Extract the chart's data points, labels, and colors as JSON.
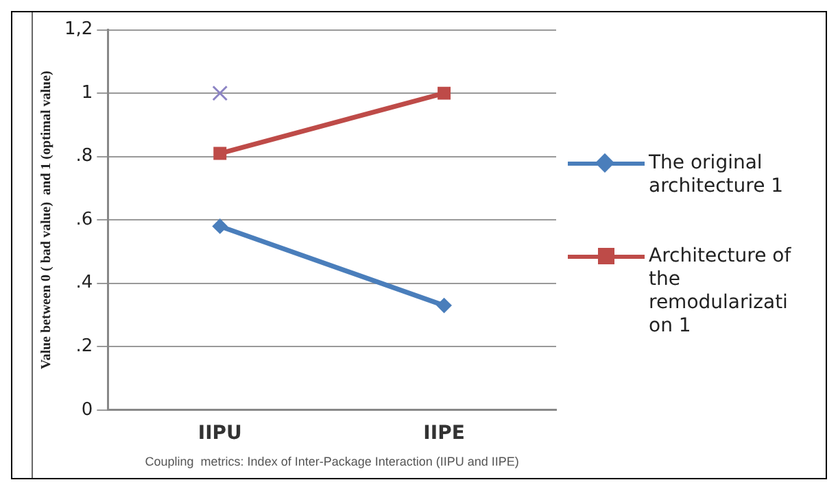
{
  "chart_data": {
    "type": "line",
    "xlabel": "Coupling  metrics: Index of Inter-Package Interaction (IIPU and IIPE)",
    "ylabel": "Value between 0 ( bad value)  and 1 (optimal value)",
    "categories": [
      "IIPU",
      "IIPE"
    ],
    "series": [
      {
        "name": "The original architecture 1",
        "color": "#4a7ebb",
        "values": [
          0.58,
          0.33
        ],
        "marker": "diamond"
      },
      {
        "name": "Architecture of the remodularization 1",
        "color": "#be4b48",
        "values": [
          0.81,
          1.0
        ],
        "marker": "square"
      },
      {
        "color": "#8c84c4",
        "values": [
          1.0,
          null
        ],
        "marker": "cross"
      }
    ],
    "ylim": [
      0,
      1.2
    ],
    "yticks": [
      0,
      {
        "value": 0.2,
        "label": ".2"
      },
      {
        "value": 0.4,
        "label": ".4"
      },
      {
        "value": 0.6,
        "label": ".6"
      },
      {
        "value": 0.8,
        "label": ".8"
      },
      1,
      {
        "value": 1.2,
        "label": "1,2"
      }
    ],
    "grid": "y",
    "legend": "right"
  }
}
